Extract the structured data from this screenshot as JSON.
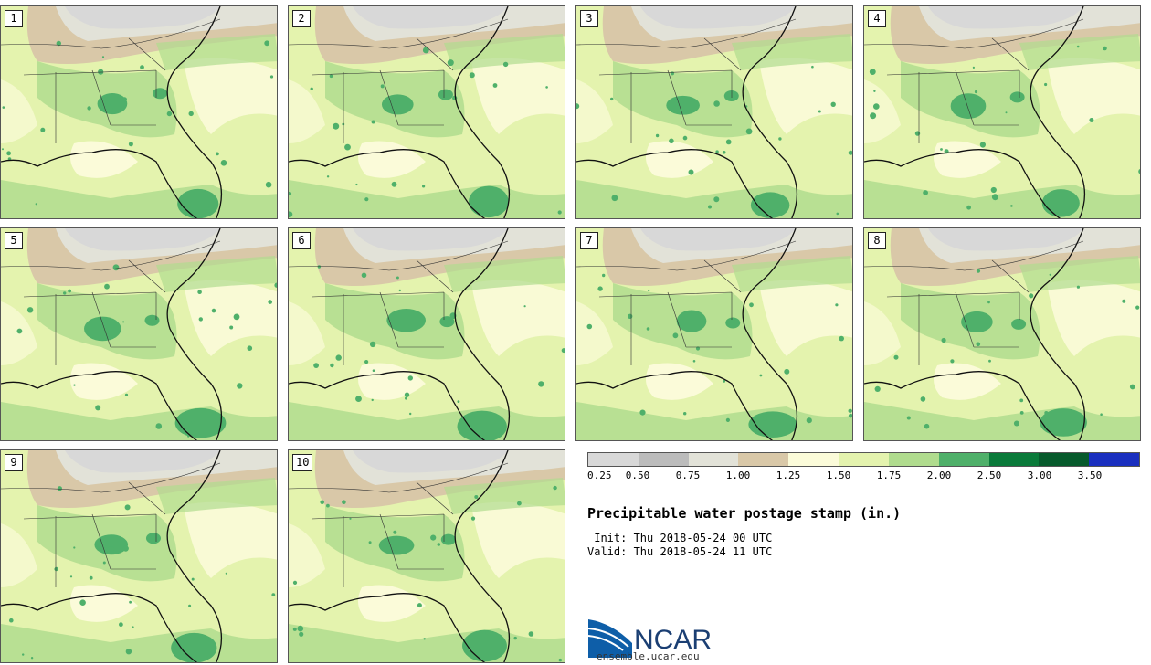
{
  "panels": [
    {
      "label": "1"
    },
    {
      "label": "2"
    },
    {
      "label": "3"
    },
    {
      "label": "4"
    },
    {
      "label": "5"
    },
    {
      "label": "6"
    },
    {
      "label": "7"
    },
    {
      "label": "8"
    },
    {
      "label": "9"
    },
    {
      "label": "10"
    }
  ],
  "colorbar": {
    "colors": [
      "#d8d8d8",
      "#bcbcbc",
      "#e2e2d8",
      "#d9c8a8",
      "#fbfbd9",
      "#e4f3ae",
      "#b0dc8e",
      "#4fb06a",
      "#0a7a3a",
      "#075a2c",
      "#1a2fbf"
    ],
    "ticks": [
      "0.25",
      "0.50",
      "0.75",
      "1.00",
      "1.25",
      "1.50",
      "1.75",
      "2.00",
      "2.50",
      "3.00",
      "3.50"
    ]
  },
  "title": "Precipitable water postage stamp (in.)",
  "init_line": " Init: Thu 2018-05-24 00 UTC",
  "valid_line": "Valid: Thu 2018-05-24 11 UTC",
  "logo": {
    "text": "NCAR",
    "url": "ensemble.ucar.edu"
  }
}
